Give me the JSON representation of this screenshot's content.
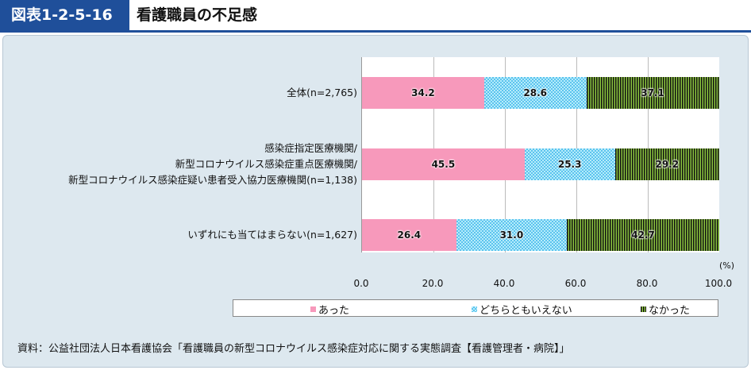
{
  "header": {
    "figure_number": "図表1-2-5-16",
    "title": "看護職員の不足感"
  },
  "chart_data": {
    "type": "bar",
    "stacked": true,
    "orientation": "horizontal",
    "title": "看護職員の不足感",
    "categories": [
      "全体(n=2,765)",
      [
        "感染症指定医療機関/",
        "新型コロナウイルス感染症重点医療機関/",
        "新型コロナウイルス感染症疑い患者受入協力医療機関(n=1,138)"
      ],
      "いずれにも当てはまらない(n=1,627)"
    ],
    "series": [
      {
        "name": "あった",
        "color": "#f799bb",
        "values": [
          34.2,
          45.5,
          26.4
        ]
      },
      {
        "name": "どちらともいえない",
        "color": "#5cc3ee",
        "values": [
          28.6,
          25.3,
          31.0
        ]
      },
      {
        "name": "なかった",
        "color": "#8cc63f",
        "values": [
          37.1,
          29.2,
          42.7
        ]
      }
    ],
    "xlim": [
      0,
      100
    ],
    "xticks": [
      "0.0",
      "20.0",
      "40.0",
      "60.0",
      "80.0",
      "100.0"
    ],
    "xunit": "(%)",
    "grid": true,
    "legend": "bottom"
  },
  "source": "資料：公益社団法人日本看護協会「看護職員の新型コロナウイルス感染症対応に関する実態調査【看護管理者・病院】」"
}
